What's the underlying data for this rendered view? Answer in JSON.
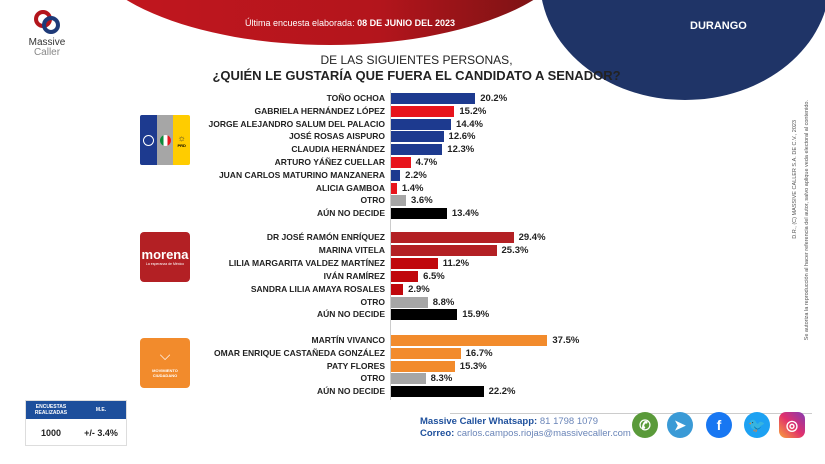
{
  "header": {
    "last_survey_label": "Última encuesta elaborada:",
    "last_survey_date": "08 DE JUNIO DEL 2023",
    "state": "DURANGO",
    "logo_line1": "Massive",
    "logo_line2": "Caller"
  },
  "question": {
    "line1": "DE LAS SIGUIENTES PERSONAS,",
    "line2": "¿QUIÉN LE GUSTARÍA QUE FUERA EL CANDIDATO  A SENADOR?"
  },
  "colors": {
    "pan_blue": "#1d3a8f",
    "pri_red": "#e8141c",
    "morena": "#b32024",
    "mc_orange": "#f28b2c",
    "otro": "#a6a6a6",
    "no_decide": "#000000"
  },
  "chart_data": [
    {
      "type": "bar",
      "orientation": "horizontal",
      "group": "PAN-PRI-PRD",
      "categories": [
        "TOÑO OCHOA",
        "GABRIELA HERNÁNDEZ LÓPEZ",
        "JORGE ALEJANDRO SALUM DEL PALACIO",
        "JOSÉ ROSAS AISPURO",
        "CLAUDIA HERNÁNDEZ",
        "ARTURO YÁÑEZ CUELLAR",
        "JUAN CARLOS MATURINO MANZANERA",
        "ALICIA GAMBOA",
        "OTRO",
        "AÚN NO DECIDE"
      ],
      "values": [
        20.2,
        15.2,
        14.4,
        12.6,
        12.3,
        4.7,
        2.2,
        1.4,
        3.6,
        13.4
      ],
      "labels": [
        "20.2%",
        "15.2%",
        "14.4%",
        "12.6%",
        "12.3%",
        "4.7%",
        "2.2%",
        "1.4%",
        "3.6%",
        "13.4%"
      ],
      "bar_colors": [
        "#1d3a8f",
        "#e8141c",
        "#1d3a8f",
        "#1d3a8f",
        "#1d3a8f",
        "#e8141c",
        "#1d3a8f",
        "#e8141c",
        "#a6a6a6",
        "#000000"
      ]
    },
    {
      "type": "bar",
      "orientation": "horizontal",
      "group": "morena",
      "categories": [
        "DR JOSÉ RAMÓN ENRÍQUEZ",
        "MARINA VITELA",
        "LILIA MARGARITA VALDEZ MARTÍNEZ",
        "IVÁN RAMÍREZ",
        "SANDRA LILIA AMAYA ROSALES",
        "OTRO",
        "AÚN NO DECIDE"
      ],
      "values": [
        29.4,
        25.3,
        11.2,
        6.5,
        2.9,
        8.8,
        15.9
      ],
      "labels": [
        "29.4%",
        "25.3%",
        "11.2%",
        "6.5%",
        "2.9%",
        "8.8%",
        "15.9%"
      ],
      "bar_colors": [
        "#b32024",
        "#b32024",
        "#c0080c",
        "#c0080c",
        "#c0080c",
        "#a6a6a6",
        "#000000"
      ]
    },
    {
      "type": "bar",
      "orientation": "horizontal",
      "group": "MOVIMIENTO CIUDADANO",
      "categories": [
        "MARTÍN VIVANCO",
        "OMAR ENRIQUE CASTAÑEDA GONZÁLEZ",
        "PATY FLORES",
        "OTRO",
        "AÚN NO DECIDE"
      ],
      "values": [
        37.5,
        16.7,
        15.3,
        8.3,
        22.2
      ],
      "labels": [
        "37.5%",
        "16.7%",
        "15.3%",
        "8.3%",
        "22.2%"
      ],
      "bar_colors": [
        "#f28b2c",
        "#f28b2c",
        "#f28b2c",
        "#a6a6a6",
        "#000000"
      ]
    }
  ],
  "party_logos": {
    "morena_name": "morena",
    "morena_tagline": "La esperanza de México",
    "mc_name": "MOVIMIENTO CIUDADANO",
    "prd": "PRD"
  },
  "sidebar_note": {
    "line1": "D.R., (C) MASSIVE CALLER S.A. DE C.V., 2023",
    "line2": "Se autoriza la reproducción al hacer referencia del autor, salvo aplique veda electoral al contenido."
  },
  "survey_box": {
    "col1_header": "ENCUESTAS REALIZADAS",
    "col2_header": "M.E.",
    "surveys": "1000",
    "margin": "+/- 3.4%"
  },
  "footer": {
    "whatsapp_label": "Massive Caller Whatsapp:",
    "whatsapp": "81 1798 1079",
    "email_label": "Correo:",
    "email": "carlos.campos.riojas@massivecaller.com"
  },
  "social": [
    "whatsapp-icon",
    "telegram-icon",
    "facebook-icon",
    "twitter-icon",
    "instagram-icon"
  ]
}
